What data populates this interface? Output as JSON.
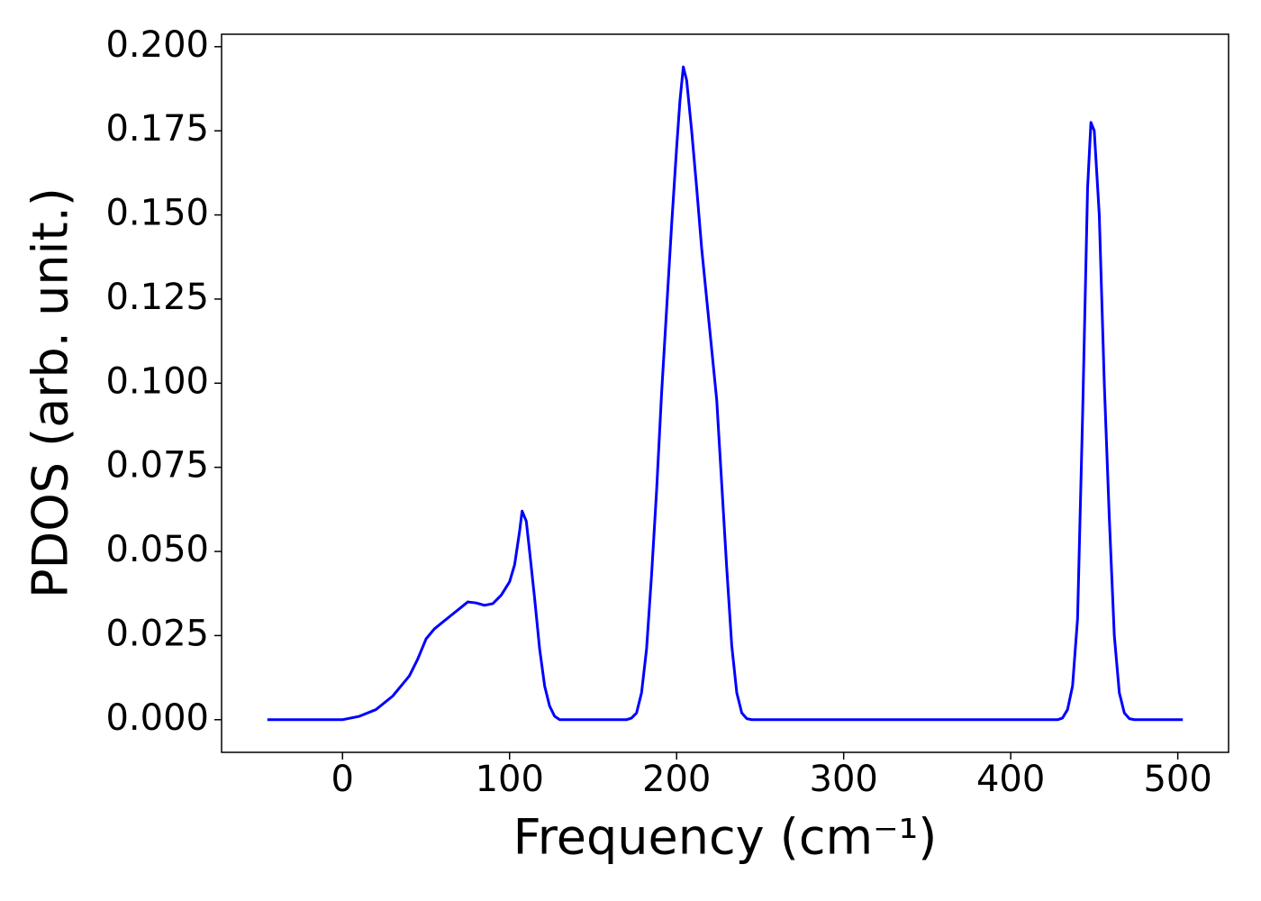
{
  "chart_data": {
    "type": "line",
    "xlabel": "Frequency (cm⁻¹)",
    "ylabel": "PDOS (arb. unit.)",
    "x": [
      -45,
      0,
      10,
      20,
      30,
      40,
      45,
      50,
      55,
      60,
      65,
      70,
      75,
      80,
      85,
      90,
      95,
      100,
      103,
      106,
      107.5,
      110,
      112,
      115,
      118,
      121,
      124,
      127,
      130,
      170,
      173,
      176,
      179,
      182,
      185,
      188,
      191,
      194,
      197,
      200,
      202,
      204,
      206,
      209,
      212,
      215,
      218,
      221,
      224,
      227,
      230,
      233,
      236,
      239,
      242,
      245,
      428,
      431,
      434,
      437,
      440,
      443,
      446,
      448,
      450,
      453,
      456,
      459,
      462,
      465,
      468,
      471,
      474,
      503
    ],
    "series": [
      {
        "name": "PDOS",
        "color": "#0000ff",
        "values": [
          0,
          0,
          0.001,
          0.003,
          0.007,
          0.013,
          0.018,
          0.024,
          0.027,
          0.029,
          0.031,
          0.033,
          0.035,
          0.0347,
          0.034,
          0.0345,
          0.037,
          0.041,
          0.046,
          0.056,
          0.062,
          0.059,
          0.05,
          0.036,
          0.021,
          0.01,
          0.004,
          0.001,
          0,
          0,
          0.0005,
          0.002,
          0.008,
          0.021,
          0.043,
          0.068,
          0.097,
          0.122,
          0.147,
          0.17,
          0.184,
          0.194,
          0.19,
          0.175,
          0.158,
          0.14,
          0.125,
          0.11,
          0.095,
          0.07,
          0.045,
          0.022,
          0.008,
          0.002,
          0.0003,
          0,
          0,
          0.0005,
          0.003,
          0.01,
          0.03,
          0.09,
          0.158,
          0.1775,
          0.175,
          0.15,
          0.1,
          0.06,
          0.025,
          0.008,
          0.002,
          0.0003,
          0,
          0
        ]
      }
    ],
    "xlim": [
      -72.4,
      530.4
    ],
    "ylim": [
      -0.0097,
      0.2037
    ],
    "xticks": [
      0,
      100,
      200,
      300,
      400,
      500
    ],
    "yticks": [
      {
        "value": 0,
        "label": "0.000"
      },
      {
        "value": 0.025,
        "label": "0.025"
      },
      {
        "value": 0.05,
        "label": "0.050"
      },
      {
        "value": 0.075,
        "label": "0.075"
      },
      {
        "value": 0.1,
        "label": "0.100"
      },
      {
        "value": 0.125,
        "label": "0.125"
      },
      {
        "value": 0.15,
        "label": "0.150"
      },
      {
        "value": 0.175,
        "label": "0.175"
      },
      {
        "value": 0.2,
        "label": "0.200"
      }
    ],
    "grid": false
  }
}
